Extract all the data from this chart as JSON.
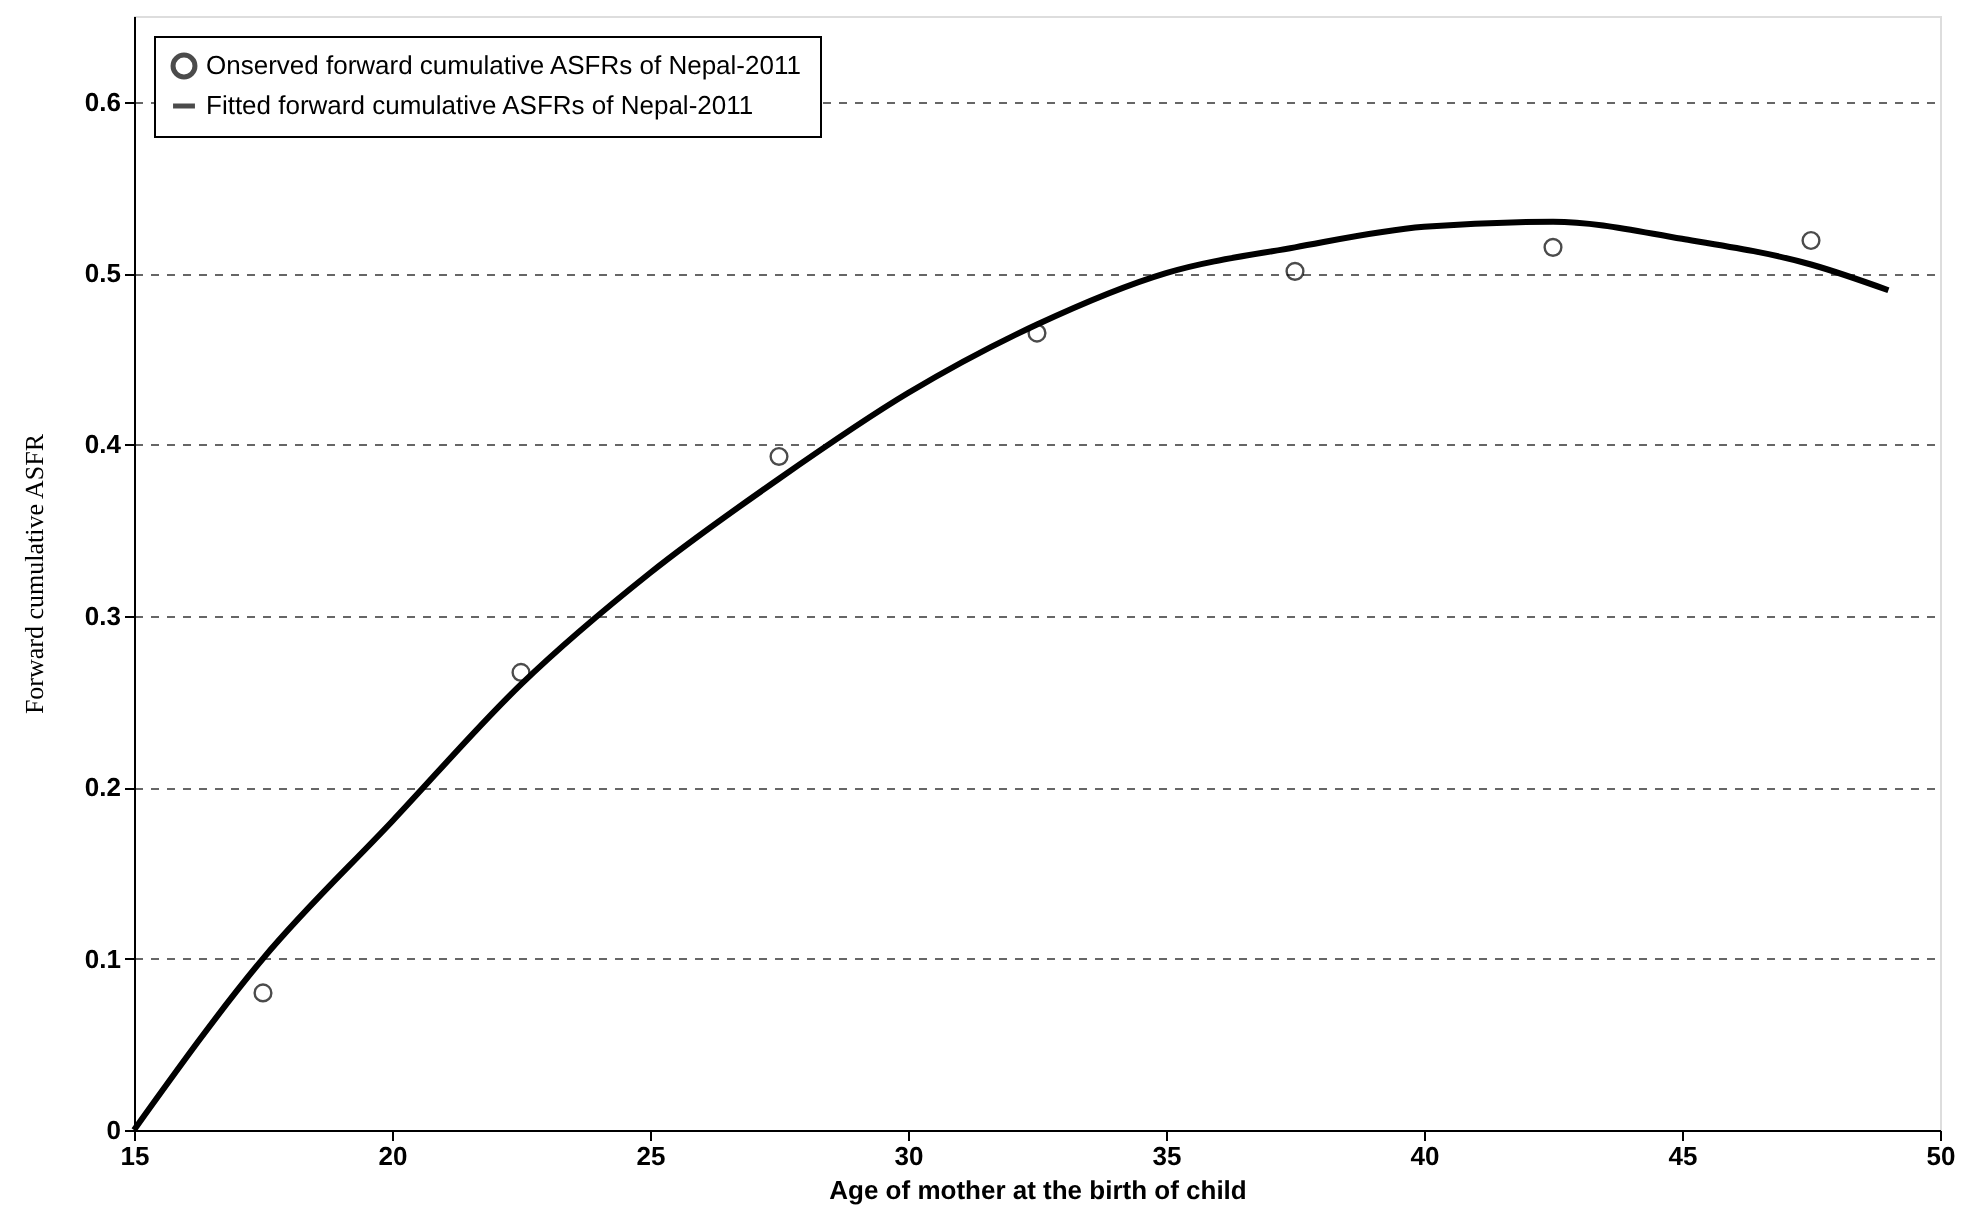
{
  "chart_data": {
    "type": "line",
    "xlabel": "Age of mother at the birth of child",
    "ylabel": "Forward cumulative ASFR",
    "xlim": [
      15,
      50
    ],
    "xticks": [
      15,
      20,
      25,
      30,
      35,
      40,
      45,
      50
    ],
    "ylim": [
      0,
      0.65
    ],
    "yticks": [
      0,
      0.1,
      0.2,
      0.3,
      0.4,
      0.5,
      0.6
    ],
    "grid": "y",
    "legend": "top left",
    "series": [
      {
        "name": "Onserved forward cumulative ASFRs of Nepal-2011",
        "type": "scatter",
        "marker": "circle",
        "color": "#000000",
        "x": [
          17.5,
          22.5,
          27.5,
          32.5,
          37.5,
          42.5,
          47.5
        ],
        "values": [
          0.08,
          0.267,
          0.393,
          0.465,
          0.501,
          0.515,
          0.519
        ]
      },
      {
        "name": "Fitted forward cumulative ASFRs of Nepal-2011",
        "type": "line",
        "line_style": "solid",
        "color": "#000000",
        "x": [
          15,
          17.5,
          20,
          22.5,
          25,
          27.5,
          30,
          32.5,
          35,
          37.5,
          40,
          42.5,
          45,
          47.5,
          49
        ],
        "values": [
          0,
          0.1,
          0.18,
          0.26,
          0.325,
          0.38,
          0.43,
          0.47,
          0.5,
          0.515,
          0.527,
          0.53,
          0.52,
          0.505,
          0.49
        ]
      }
    ]
  }
}
